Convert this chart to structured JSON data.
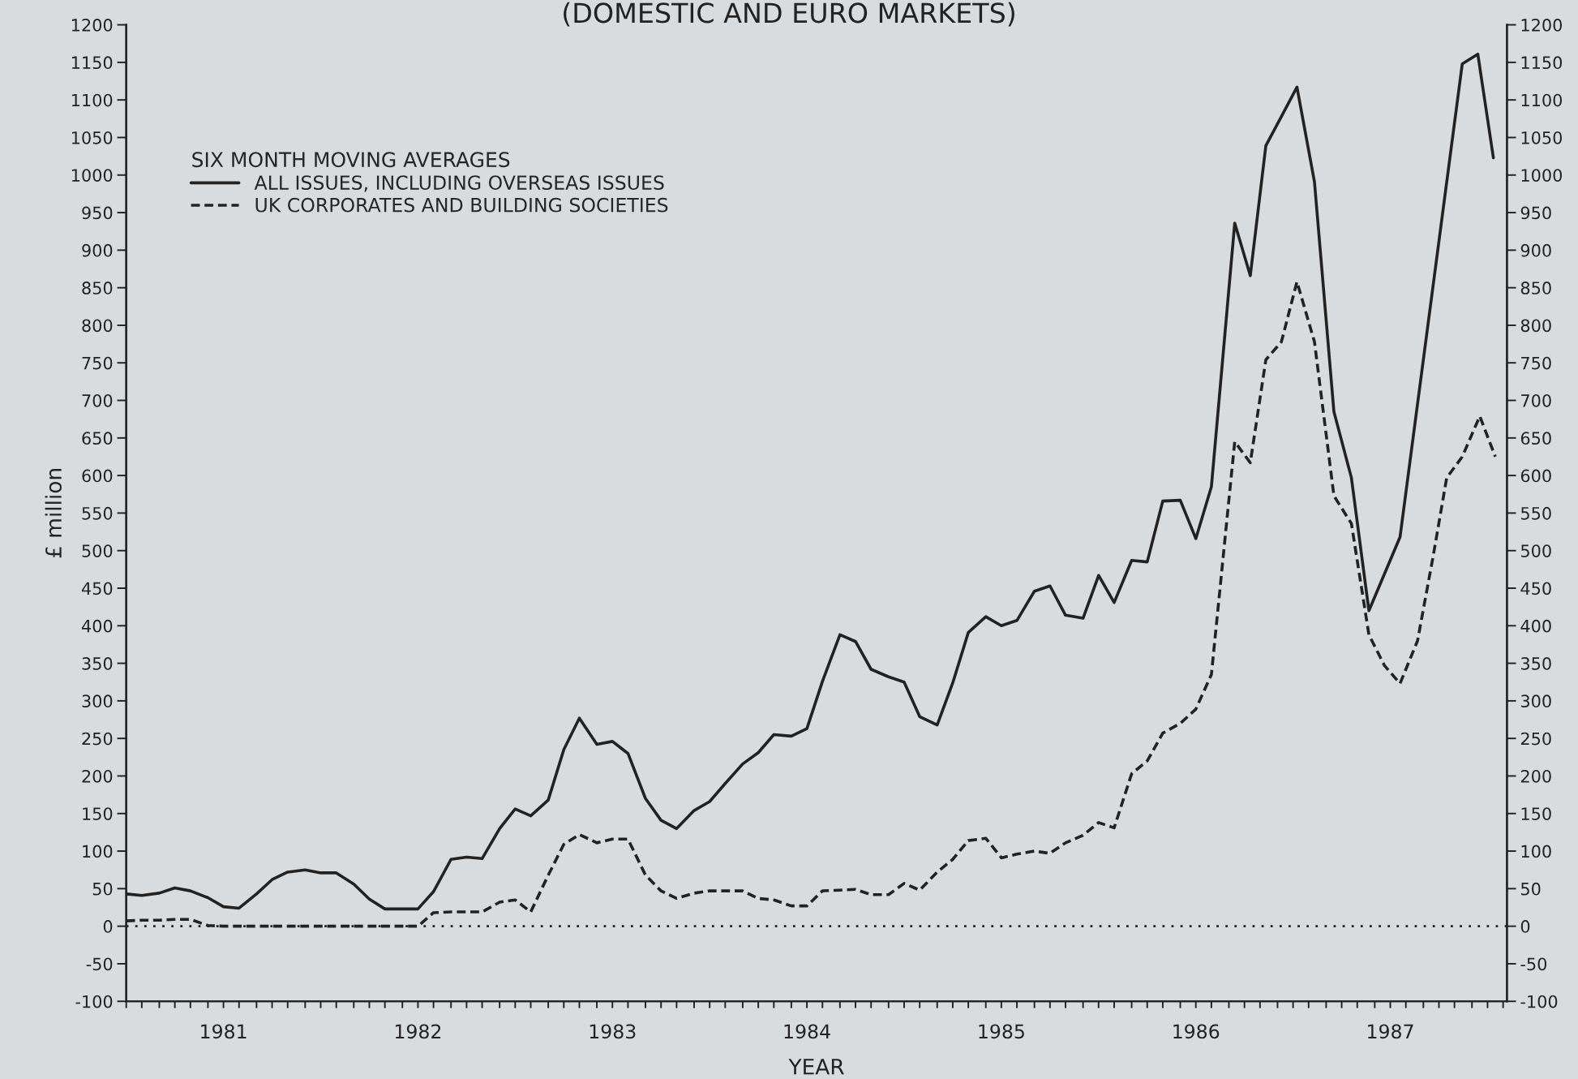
{
  "chart_data": {
    "type": "line",
    "title": "(DOMESTIC AND EURO MARKETS)",
    "xlabel": "YEAR",
    "ylabel": "£ million",
    "legend_title": "SIX MONTH MOVING AVERAGES",
    "legend": "top left",
    "grid": false,
    "xlim": [
      1980.5,
      1987.6
    ],
    "xticks": [
      {
        "value": 1980.5,
        "label": null
      },
      {
        "value": 1980.58,
        "label": null
      },
      {
        "value": 1980.67,
        "label": null
      },
      {
        "value": 1980.75,
        "label": null
      },
      {
        "value": 1980.83,
        "label": null
      },
      {
        "value": 1980.92,
        "label": null
      },
      {
        "value": 1981,
        "label": "1981"
      },
      {
        "value": 1981.08,
        "label": null
      },
      {
        "value": 1981.17,
        "label": null
      },
      {
        "value": 1981.25,
        "label": null
      },
      {
        "value": 1981.33,
        "label": null
      },
      {
        "value": 1981.42,
        "label": null
      },
      {
        "value": 1981.5,
        "label": null
      },
      {
        "value": 1981.58,
        "label": null
      },
      {
        "value": 1981.67,
        "label": null
      },
      {
        "value": 1981.75,
        "label": null
      },
      {
        "value": 1981.83,
        "label": null
      },
      {
        "value": 1981.92,
        "label": null
      },
      {
        "value": 1982,
        "label": "1982"
      },
      {
        "value": 1982.08,
        "label": null
      },
      {
        "value": 1982.17,
        "label": null
      },
      {
        "value": 1982.25,
        "label": null
      },
      {
        "value": 1982.33,
        "label": null
      },
      {
        "value": 1982.42,
        "label": null
      },
      {
        "value": 1982.5,
        "label": null
      },
      {
        "value": 1982.58,
        "label": null
      },
      {
        "value": 1982.67,
        "label": null
      },
      {
        "value": 1982.75,
        "label": null
      },
      {
        "value": 1982.83,
        "label": null
      },
      {
        "value": 1982.92,
        "label": null
      },
      {
        "value": 1983,
        "label": "1983"
      },
      {
        "value": 1983.08,
        "label": null
      },
      {
        "value": 1983.17,
        "label": null
      },
      {
        "value": 1983.25,
        "label": null
      },
      {
        "value": 1983.33,
        "label": null
      },
      {
        "value": 1983.42,
        "label": null
      },
      {
        "value": 1983.5,
        "label": null
      },
      {
        "value": 1983.58,
        "label": null
      },
      {
        "value": 1983.67,
        "label": null
      },
      {
        "value": 1983.75,
        "label": null
      },
      {
        "value": 1983.83,
        "label": null
      },
      {
        "value": 1983.92,
        "label": null
      },
      {
        "value": 1984,
        "label": "1984"
      },
      {
        "value": 1984.08,
        "label": null
      },
      {
        "value": 1984.17,
        "label": null
      },
      {
        "value": 1984.25,
        "label": null
      },
      {
        "value": 1984.33,
        "label": null
      },
      {
        "value": 1984.42,
        "label": null
      },
      {
        "value": 1984.5,
        "label": null
      },
      {
        "value": 1984.58,
        "label": null
      },
      {
        "value": 1984.67,
        "label": null
      },
      {
        "value": 1984.75,
        "label": null
      },
      {
        "value": 1984.83,
        "label": null
      },
      {
        "value": 1984.92,
        "label": null
      },
      {
        "value": 1985,
        "label": "1985"
      },
      {
        "value": 1985.08,
        "label": null
      },
      {
        "value": 1985.17,
        "label": null
      },
      {
        "value": 1985.25,
        "label": null
      },
      {
        "value": 1985.33,
        "label": null
      },
      {
        "value": 1985.42,
        "label": null
      },
      {
        "value": 1985.5,
        "label": null
      },
      {
        "value": 1985.58,
        "label": null
      },
      {
        "value": 1985.67,
        "label": null
      },
      {
        "value": 1985.75,
        "label": null
      },
      {
        "value": 1985.83,
        "label": null
      },
      {
        "value": 1985.92,
        "label": null
      },
      {
        "value": 1986,
        "label": "1986"
      },
      {
        "value": 1986.08,
        "label": null
      },
      {
        "value": 1986.17,
        "label": null
      },
      {
        "value": 1986.25,
        "label": null
      },
      {
        "value": 1986.33,
        "label": null
      },
      {
        "value": 1986.42,
        "label": null
      },
      {
        "value": 1986.5,
        "label": null
      },
      {
        "value": 1986.58,
        "label": null
      },
      {
        "value": 1986.67,
        "label": null
      },
      {
        "value": 1986.75,
        "label": null
      },
      {
        "value": 1986.83,
        "label": null
      },
      {
        "value": 1986.92,
        "label": null
      },
      {
        "value": 1987,
        "label": "1987"
      },
      {
        "value": 1987.08,
        "label": null
      },
      {
        "value": 1987.17,
        "label": null
      },
      {
        "value": 1987.25,
        "label": null
      },
      {
        "value": 1987.33,
        "label": null
      },
      {
        "value": 1987.42,
        "label": null
      },
      {
        "value": 1987.5,
        "label": null
      },
      {
        "value": 1987.58,
        "label": null
      }
    ],
    "ylim": [
      -100,
      1200
    ],
    "yticks": [
      -100,
      -50,
      0,
      50,
      100,
      150,
      200,
      250,
      300,
      350,
      400,
      450,
      500,
      550,
      600,
      650,
      700,
      750,
      800,
      850,
      900,
      950,
      1000,
      1050,
      1100,
      1150,
      1200
    ],
    "y2lim": [
      -100,
      1200
    ],
    "y2ticks": [
      -100,
      -50,
      0,
      50,
      100,
      150,
      200,
      250,
      300,
      350,
      400,
      450,
      500,
      550,
      600,
      650,
      700,
      750,
      800,
      850,
      900,
      950,
      1000,
      1050,
      1100,
      1150,
      1200
    ],
    "ref_lines": [
      {
        "axis": "y",
        "value": 0,
        "color": "#222222",
        "line_style": "dotted"
      }
    ],
    "series": [
      {
        "name": "ALL ISSUES, INCLUDING OVERSEAS ISSUES",
        "color": "#222222",
        "line_style": "solid",
        "x": [
          1980.5,
          1980.58,
          1980.67,
          1980.75,
          1980.83,
          1980.92,
          1981,
          1981.08,
          1981.17,
          1981.25,
          1981.33,
          1981.42,
          1981.5,
          1981.58,
          1981.67,
          1981.75,
          1981.83,
          1981.92,
          1982,
          1982.08,
          1982.17,
          1982.25,
          1982.33,
          1982.42,
          1982.5,
          1982.58,
          1982.67,
          1982.75,
          1982.83,
          1982.92,
          1983,
          1983.08,
          1983.17,
          1983.25,
          1983.33,
          1983.42,
          1983.5,
          1983.58,
          1983.67,
          1983.75,
          1983.83,
          1983.92,
          1984,
          1984.08,
          1984.17,
          1984.25,
          1984.33,
          1984.42,
          1984.5,
          1984.58,
          1984.67,
          1984.75,
          1984.83,
          1984.92,
          1985,
          1985.08,
          1985.17,
          1985.25,
          1985.33,
          1985.42,
          1985.5,
          1985.58,
          1985.67,
          1985.75,
          1985.83,
          1985.92,
          1986,
          1986.08,
          1986.2,
          1986.28,
          1986.36,
          1986.44,
          1986.52,
          1986.61,
          1986.71,
          1986.8,
          1986.89,
          1987.05,
          1987.37,
          1987.45,
          1987.53
        ],
        "values": [
          43,
          41,
          44,
          51,
          47,
          38,
          26,
          24,
          43,
          62,
          72,
          75,
          71,
          71,
          56,
          36,
          23,
          23,
          23,
          46,
          89,
          92,
          90,
          130,
          156,
          147,
          168,
          235,
          277,
          242,
          246,
          230,
          170,
          141,
          130,
          154,
          166,
          190,
          216,
          231,
          255,
          253,
          263,
          326,
          388,
          379,
          342,
          332,
          325,
          279,
          268,
          324,
          391,
          412,
          400,
          407,
          446,
          453,
          414,
          410,
          467,
          431,
          487,
          485,
          566,
          567,
          516,
          585,
          936,
          866,
          1039,
          1078,
          1117,
          991,
          685,
          597,
          420,
          518,
          1148,
          1161,
          1023
        ]
      },
      {
        "name": "UK CORPORATES AND BUILDING SOCIETIES",
        "color": "#222222",
        "line_style": "dashed",
        "x": [
          1980.5,
          1980.58,
          1980.67,
          1980.75,
          1980.83,
          1980.92,
          1981,
          1981.08,
          1981.17,
          1981.25,
          1981.33,
          1981.42,
          1981.5,
          1981.58,
          1981.67,
          1981.75,
          1981.83,
          1981.92,
          1982,
          1982.08,
          1982.17,
          1982.25,
          1982.33,
          1982.42,
          1982.5,
          1982.58,
          1982.67,
          1982.75,
          1982.83,
          1982.92,
          1983,
          1983.08,
          1983.17,
          1983.25,
          1983.33,
          1983.42,
          1983.5,
          1983.58,
          1983.67,
          1983.75,
          1983.83,
          1983.92,
          1984,
          1984.08,
          1984.17,
          1984.25,
          1984.33,
          1984.42,
          1984.5,
          1984.58,
          1984.67,
          1984.75,
          1984.83,
          1984.92,
          1985,
          1985.08,
          1985.17,
          1985.25,
          1985.33,
          1985.42,
          1985.5,
          1985.58,
          1985.67,
          1985.75,
          1985.83,
          1985.92,
          1986,
          1986.08,
          1986.2,
          1986.28,
          1986.36,
          1986.44,
          1986.52,
          1986.61,
          1986.71,
          1986.8,
          1986.89,
          1986.97,
          1987.05,
          1987.14,
          1987.22,
          1987.29,
          1987.37,
          1987.46,
          1987.54
        ],
        "values": [
          7,
          8,
          8,
          9,
          9,
          1,
          0,
          0,
          0,
          0,
          0,
          0,
          0,
          0,
          0,
          0,
          0,
          0,
          0,
          18,
          19,
          19,
          19,
          32,
          35,
          19,
          68,
          109,
          122,
          111,
          116,
          116,
          68,
          47,
          37,
          44,
          47,
          47,
          47,
          37,
          35,
          27,
          27,
          47,
          48,
          49,
          42,
          42,
          57,
          48,
          72,
          89,
          114,
          117,
          91,
          96,
          100,
          97,
          111,
          121,
          138,
          131,
          203,
          220,
          257,
          270,
          289,
          335,
          645,
          617,
          754,
          778,
          858,
          778,
          573,
          536,
          388,
          347,
          323,
          380,
          492,
          597,
          625,
          679,
          625
        ]
      }
    ]
  }
}
